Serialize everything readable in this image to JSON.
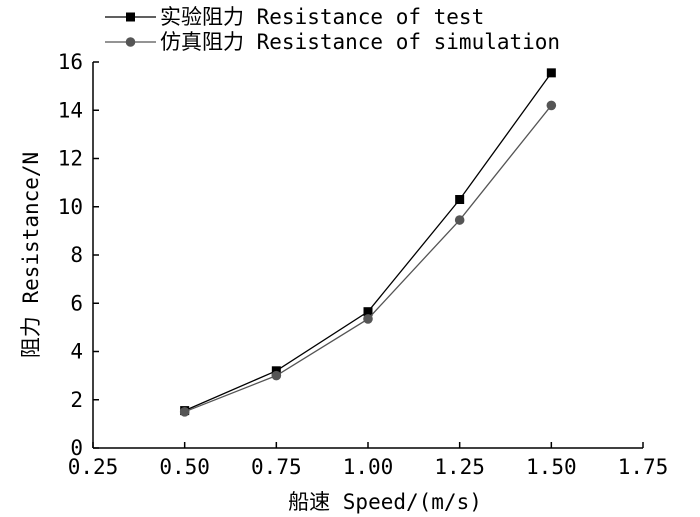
{
  "chart_data": {
    "type": "line",
    "title": "",
    "xlabel": "船速 Speed/(m/s)",
    "ylabel": "阻力 Resistance/N",
    "xlim": [
      0.25,
      1.75
    ],
    "ylim": [
      0,
      16
    ],
    "xticks": [
      "0.25",
      "0.50",
      "0.75",
      "1.00",
      "1.25",
      "1.50",
      "1.75"
    ],
    "yticks": [
      "0",
      "2",
      "4",
      "6",
      "8",
      "10",
      "12",
      "14",
      "16"
    ],
    "legend_position": "top-left, above plot",
    "grid": false,
    "series": [
      {
        "name": "实验阻力 Resistance of test",
        "marker": "square",
        "color": "#000000",
        "x": [
          0.5,
          0.75,
          1.0,
          1.25,
          1.5
        ],
        "y": [
          1.55,
          3.2,
          5.65,
          10.3,
          15.55
        ]
      },
      {
        "name": "仿真阻力 Resistance of simulation",
        "marker": "circle",
        "color": "#555555",
        "x": [
          0.5,
          0.75,
          1.0,
          1.25,
          1.5
        ],
        "y": [
          1.5,
          3.0,
          5.35,
          9.45,
          14.2
        ]
      }
    ]
  }
}
